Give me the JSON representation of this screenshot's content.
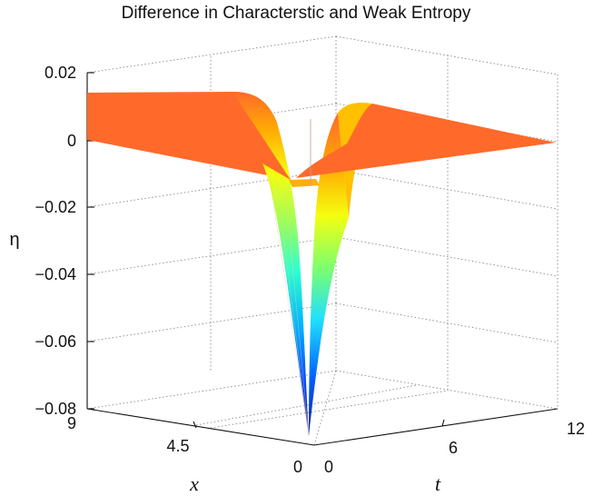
{
  "chart_data": {
    "type": "surface",
    "title": "Difference in Characterstic and Weak Entropy",
    "xlabel": "x",
    "tlabel": "t",
    "zlabel": "η",
    "x_range": [
      0,
      9
    ],
    "t_range": [
      0,
      12
    ],
    "z_range": [
      -0.08,
      0.02
    ],
    "x_ticks": [
      "0",
      "4.5",
      "9"
    ],
    "t_ticks": [
      "0",
      "6",
      "12"
    ],
    "z_ticks": [
      "0.02",
      "0",
      "−0.02",
      "−0.04",
      "−0.06",
      "−0.08"
    ],
    "grid": true,
    "colormap": "jet",
    "surface": {
      "plateau_value": 0.0,
      "trough_min": -0.088,
      "trough_location": "x = 0, t = 0"
    }
  }
}
